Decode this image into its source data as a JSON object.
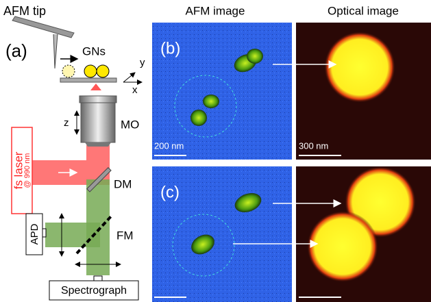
{
  "panel_a": {
    "label": "(a)",
    "afm_tip": "AFM tip",
    "gns": "GNs",
    "axis_y": "y",
    "axis_x": "x",
    "axis_z": "z",
    "objective": "MO",
    "laser": "fs laser",
    "laser_wavelength": "@ 990 nm",
    "dichroic": "DM",
    "detector": "APD",
    "flip_mirror": "FM",
    "spectrograph": "Spectrograph"
  },
  "columns": {
    "afm": "AFM image",
    "optical": "Optical image"
  },
  "panel_b": {
    "label": "(b)",
    "afm_scale": "200 nm",
    "optical_scale": "300 nm"
  },
  "panel_c": {
    "label": "(c)"
  }
}
